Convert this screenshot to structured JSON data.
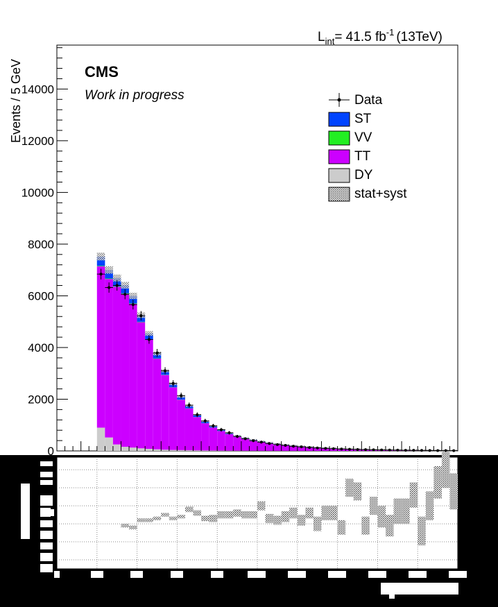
{
  "chart_data": [
    {
      "type": "bar",
      "stacked": true,
      "header": {
        "lumi_label": "L",
        "lumi_sub": "int",
        "lumi_value": "= 41.5 fb",
        "lumi_sup": "-1",
        "energy": "(13TeV)"
      },
      "experiment": "CMS",
      "status": "Work in progress",
      "ylabel": "Events / 5 GeV",
      "xlabel": "",
      "ylim": [
        0,
        15700
      ],
      "yticks": [
        "0",
        "2000",
        "4000",
        "6000",
        "8000",
        "10000",
        "12000",
        "14000"
      ],
      "x": [
        12.5,
        17.5,
        22.5,
        27.5,
        32.5,
        37.5,
        42.5,
        47.5,
        52.5,
        57.5,
        62.5,
        67.5,
        72.5,
        77.5,
        82.5,
        87.5,
        92.5,
        97.5,
        102.5,
        107.5,
        112.5,
        117.5,
        122.5,
        127.5,
        132.5,
        137.5,
        142.5,
        147.5,
        152.5,
        157.5,
        162.5,
        167.5,
        172.5,
        177.5,
        182.5,
        187.5,
        192.5,
        197.5,
        202.5,
        207.5,
        212.5,
        217.5,
        222.5,
        227.5,
        232.5,
        237.5,
        242.5,
        247.5,
        252.5,
        257.5
      ],
      "legend": [
        {
          "label": "Data",
          "color": "#000000",
          "style": "marker"
        },
        {
          "label": "ST",
          "color": "#0044ff",
          "style": "fill"
        },
        {
          "label": "VV",
          "color": "#22ee22",
          "style": "fill"
        },
        {
          "label": "TT",
          "color": "#cc00ff",
          "style": "fill"
        },
        {
          "label": "DY",
          "color": "#cccccc",
          "style": "fill"
        },
        {
          "label": "stat+syst",
          "color": "#555555",
          "style": "hatch"
        }
      ],
      "series": [
        {
          "name": "DY",
          "color": "#cccccc",
          "values": [
            0,
            0,
            0,
            0,
            0,
            900,
            520,
            250,
            160,
            130,
            100,
            80,
            60,
            45,
            35,
            30,
            25,
            20,
            16,
            13,
            11,
            9,
            8,
            7,
            6,
            5,
            4,
            4,
            3,
            3,
            2,
            2,
            2,
            2,
            1,
            1,
            1,
            1,
            1,
            1,
            1,
            1,
            1,
            1,
            1,
            1,
            1,
            1,
            1,
            1
          ]
        },
        {
          "name": "TT",
          "color": "#cc00ff",
          "values": [
            0,
            0,
            0,
            0,
            0,
            6240,
            6130,
            6100,
            5920,
            5560,
            4880,
            4230,
            3510,
            2890,
            2420,
            1950,
            1620,
            1290,
            1055,
            890,
            755,
            640,
            540,
            465,
            400,
            345,
            300,
            255,
            220,
            190,
            165,
            140,
            122,
            105,
            92,
            80,
            70,
            61,
            54,
            47,
            41,
            36,
            31,
            27,
            24,
            21,
            18,
            16,
            14,
            12
          ]
        },
        {
          "name": "VV",
          "color": "#22ee22",
          "values": [
            0,
            0,
            0,
            0,
            0,
            20,
            20,
            19,
            18,
            17,
            15,
            13,
            11,
            9,
            8,
            7,
            6,
            5,
            4,
            4,
            3,
            3,
            2,
            2,
            2,
            2,
            1,
            1,
            1,
            1,
            1,
            1,
            1,
            1,
            1,
            1,
            1,
            1,
            1,
            1,
            1,
            1,
            1,
            1,
            1,
            1,
            1,
            1,
            1,
            1
          ]
        },
        {
          "name": "ST",
          "color": "#0044ff",
          "values": [
            0,
            0,
            0,
            0,
            0,
            360,
            330,
            320,
            310,
            290,
            255,
            220,
            190,
            160,
            135,
            115,
            95,
            80,
            66,
            56,
            48,
            42,
            36,
            31,
            27,
            24,
            21,
            18,
            16,
            14,
            12,
            11,
            10,
            9,
            8,
            7,
            6,
            5,
            5,
            4,
            4,
            3,
            3,
            3,
            2,
            2,
            2,
            2,
            2,
            2
          ]
        }
      ],
      "data_points": {
        "name": "Data",
        "values": [
          0,
          0,
          0,
          0,
          0,
          6840,
          6320,
          6400,
          6060,
          5660,
          5230,
          4310,
          3790,
          3100,
          2610,
          2140,
          1770,
          1400,
          1160,
          970,
          820,
          700,
          560,
          470,
          395,
          340,
          285,
          245,
          215,
          180,
          158,
          132,
          115,
          98,
          86,
          74,
          64,
          55,
          49,
          42,
          38,
          33,
          29,
          24,
          22,
          19,
          16,
          14,
          12,
          10
        ]
      }
    },
    {
      "type": "bar",
      "panel": "ratio",
      "ylabel": "",
      "xlabel": "",
      "grid": true,
      "x": [
        52.5,
        57.5,
        62.5,
        67.5,
        72.5,
        77.5,
        82.5,
        87.5,
        92.5,
        97.5,
        102.5,
        107.5,
        112.5,
        117.5,
        122.5,
        127.5,
        132.5,
        137.5,
        142.5,
        147.5,
        152.5,
        157.5,
        162.5,
        167.5,
        172.5,
        177.5,
        182.5,
        187.5,
        192.5,
        197.5,
        202.5,
        207.5,
        212.5,
        217.5,
        222.5,
        227.5,
        232.5,
        237.5,
        242.5,
        247.5,
        252.5,
        257.5
      ],
      "values": [
        0.89,
        0.88,
        0.92,
        0.92,
        0.93,
        0.95,
        0.93,
        0.94,
        0.98,
        0.96,
        0.93,
        0.93,
        0.95,
        0.95,
        0.96,
        0.95,
        0.95,
        1.0,
        0.93,
        0.92,
        0.94,
        0.96,
        0.92,
        0.96,
        0.9,
        0.96,
        0.96,
        0.88,
        1.1,
        1.08,
        0.89,
        1.0,
        0.94,
        0.89,
        0.97,
        0.97,
        1.06,
        0.86,
        1.0,
        1.13,
        1.2,
        1.08
      ],
      "band_halfwidth": [
        0.01,
        0.01,
        0.01,
        0.01,
        0.01,
        0.01,
        0.01,
        0.01,
        0.015,
        0.015,
        0.015,
        0.02,
        0.02,
        0.02,
        0.02,
        0.02,
        0.02,
        0.025,
        0.025,
        0.025,
        0.03,
        0.03,
        0.03,
        0.03,
        0.04,
        0.04,
        0.04,
        0.04,
        0.05,
        0.05,
        0.05,
        0.05,
        0.06,
        0.06,
        0.07,
        0.07,
        0.07,
        0.08,
        0.08,
        0.09,
        0.1,
        0.1
      ],
      "ylim": [
        0.65,
        1.27
      ]
    }
  ]
}
